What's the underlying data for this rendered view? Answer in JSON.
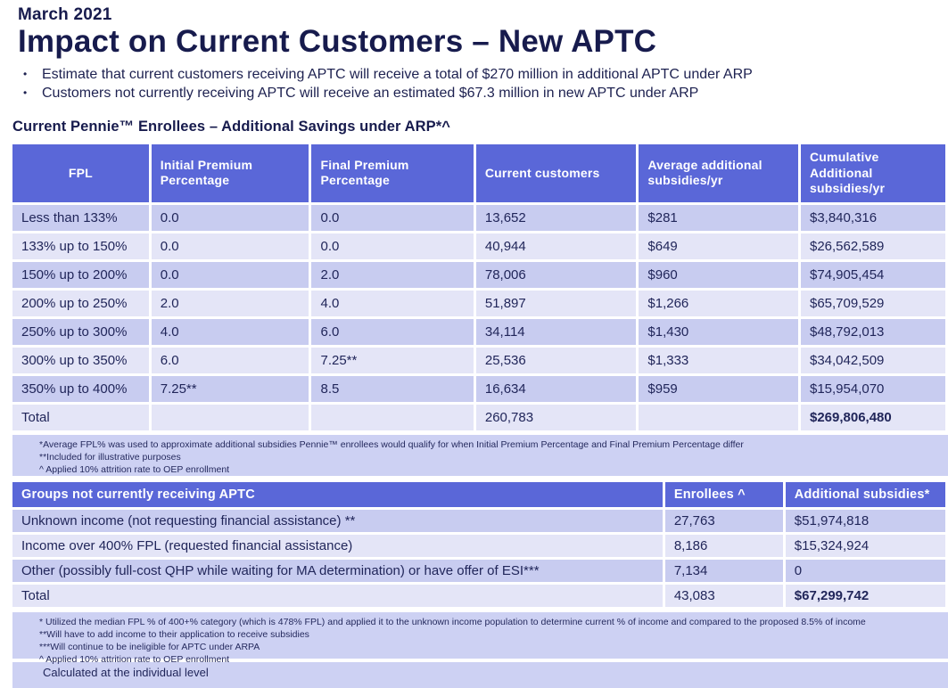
{
  "page": {
    "date": "March 2021",
    "title": "Impact on Current Customers – New APTC",
    "bullets": [
      "Estimate that current customers receiving APTC will receive a total of $270 million in additional APTC under ARP",
      "Customers not currently receiving APTC will receive an estimated $67.3 million in new APTC under ARP"
    ],
    "section_title": "Current Pennie™ Enrollees – Additional Savings under ARP*^"
  },
  "table1": {
    "headers": [
      "FPL",
      "Initial Premium Percentage",
      "Final Premium Percentage",
      "Current customers",
      "Average additional subsidies/yr",
      "Cumulative Additional subsidies/yr"
    ],
    "rows": [
      {
        "cells": [
          "Less than 133%",
          "0.0",
          "0.0",
          "13,652",
          "$281",
          "$3,840,316"
        ]
      },
      {
        "cells": [
          "133% up to 150%",
          "0.0",
          "0.0",
          "40,944",
          "$649",
          "$26,562,589"
        ]
      },
      {
        "cells": [
          "150% up to 200%",
          "0.0",
          "2.0",
          "78,006",
          "$960",
          "$74,905,454"
        ]
      },
      {
        "cells": [
          "200% up to 250%",
          "2.0",
          "4.0",
          "51,897",
          "$1,266",
          "$65,709,529"
        ]
      },
      {
        "cells": [
          "250% up to 300%",
          "4.0",
          "6.0",
          "34,114",
          "$1,430",
          "$48,792,013"
        ]
      },
      {
        "cells": [
          "300% up to 350%",
          "6.0",
          "7.25**",
          "25,536",
          "$1,333",
          "$34,042,509"
        ]
      },
      {
        "cells": [
          "350% up to 400%",
          "7.25**",
          "8.5",
          "16,634",
          "$959",
          "$15,954,070"
        ]
      },
      {
        "cells": [
          "Total",
          "",
          "",
          "260,783",
          "",
          "$269,806,480"
        ],
        "bold_cells": [
          5
        ]
      }
    ],
    "footnotes": [
      "*Average FPL% was used to approximate additional subsidies Pennie™ enrollees would qualify for when Initial Premium Percentage and Final Premium Percentage differ",
      "**Included for illustrative purposes",
      "^ Applied 10% attrition rate to OEP enrollment"
    ]
  },
  "table2": {
    "headers": [
      "Groups not currently receiving APTC",
      "Enrollees ^",
      "Additional subsidies*"
    ],
    "rows": [
      {
        "cells": [
          "Unknown income (not requesting financial assistance) **",
          "27,763",
          "$51,974,818"
        ]
      },
      {
        "cells": [
          "Income over 400% FPL (requested financial assistance)",
          "8,186",
          "$15,324,924"
        ]
      },
      {
        "cells": [
          "Other (possibly full-cost QHP while waiting for MA determination) or have offer of ESI***",
          "7,134",
          "0"
        ]
      },
      {
        "cells": [
          "Total",
          "43,083",
          "$67,299,742"
        ],
        "bold_cells": [
          2
        ]
      }
    ],
    "footnotes": [
      "* Utilized the median FPL % of 400+% category (which is 478% FPL) and applied it to the unknown income population to determine current % of income and compared to the proposed 8.5% of income",
      "**Will have to add income to their application to receive subsidies",
      "***Will continue to be ineligible for APTC under ARPA",
      "^ Applied 10% attrition rate to OEP enrollment"
    ]
  },
  "footer": {
    "note": "Calculated at the individual level"
  },
  "colors": {
    "accent_indigo": "#5a67d8",
    "row_dark": "#c8ccf0",
    "row_light": "#e4e5f7",
    "note_bg": "#cdd1f3",
    "text_navy": "#171b4d"
  }
}
